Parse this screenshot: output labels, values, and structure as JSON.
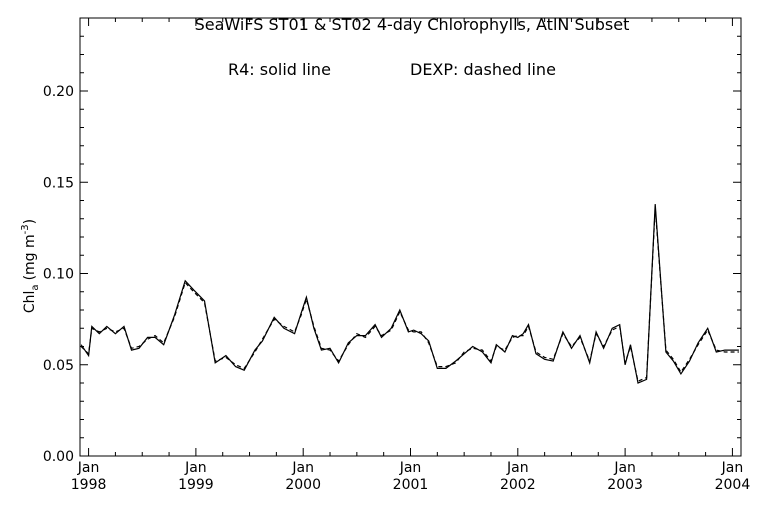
{
  "chart_data": {
    "type": "line",
    "title": "SeaWiFS ST01 & ST02 4-day Chlorophylls, AtlN Subset",
    "legend_text": [
      "R4: solid line",
      "DEXP: dashed line"
    ],
    "ylabel": "Chl",
    "ylabel_sub": "a",
    "ylabel_units": "(mg m",
    "ylabel_exp": "-3",
    "ylabel_close": ")",
    "xlabel": "",
    "ylim": [
      0.0,
      0.24
    ],
    "xlim": [
      1997.92,
      2004.08
    ],
    "y_ticks": [
      0.0,
      0.05,
      0.1,
      0.15,
      0.2
    ],
    "y_tick_labels": [
      "0.00",
      "0.05",
      "0.10",
      "0.15",
      "0.20"
    ],
    "x_ticks": [
      1998,
      1999,
      2000,
      2001,
      2002,
      2003,
      2004
    ],
    "x_tick_month": [
      "Jan",
      "Jan",
      "Jan",
      "Jan",
      "Jan",
      "Jan",
      "Jan"
    ],
    "x_tick_year": [
      "1998",
      "1999",
      "2000",
      "2001",
      "2002",
      "2003",
      "2004"
    ],
    "grid": false,
    "series": [
      {
        "name": "R4",
        "style": "solid",
        "color": "#000000",
        "x": [
          1997.93,
          1998.0,
          1998.03,
          1998.1,
          1998.17,
          1998.25,
          1998.33,
          1998.4,
          1998.47,
          1998.55,
          1998.62,
          1998.7,
          1998.8,
          1998.9,
          1998.98,
          1999.08,
          1999.18,
          1999.28,
          1999.37,
          1999.45,
          1999.55,
          1999.62,
          1999.73,
          1999.82,
          1999.92,
          1999.98,
          2000.03,
          2000.1,
          2000.17,
          2000.25,
          2000.33,
          2000.42,
          2000.5,
          2000.58,
          2000.67,
          2000.73,
          2000.82,
          2000.9,
          2000.98,
          2001.03,
          2001.1,
          2001.17,
          2001.25,
          2001.33,
          2001.42,
          2001.5,
          2001.58,
          2001.67,
          2001.75,
          2001.8,
          2001.88,
          2001.95,
          2002.0,
          2002.05,
          2002.1,
          2002.17,
          2002.25,
          2002.33,
          2002.42,
          2002.5,
          2002.58,
          2002.67,
          2002.73,
          2002.8,
          2002.88,
          2002.95,
          2003.0,
          2003.05,
          2003.12,
          2003.2,
          2003.28,
          2003.38,
          2003.45,
          2003.52,
          2003.6,
          2003.68,
          2003.77,
          2003.85,
          2003.93,
          2004.0,
          2004.06
        ],
        "y": [
          0.061,
          0.055,
          0.071,
          0.067,
          0.071,
          0.067,
          0.071,
          0.058,
          0.059,
          0.065,
          0.065,
          0.061,
          0.077,
          0.096,
          0.091,
          0.085,
          0.051,
          0.055,
          0.049,
          0.047,
          0.058,
          0.063,
          0.076,
          0.07,
          0.067,
          0.078,
          0.087,
          0.07,
          0.058,
          0.059,
          0.051,
          0.062,
          0.066,
          0.066,
          0.072,
          0.065,
          0.07,
          0.08,
          0.068,
          0.069,
          0.067,
          0.063,
          0.048,
          0.048,
          0.052,
          0.056,
          0.06,
          0.057,
          0.051,
          0.061,
          0.057,
          0.066,
          0.065,
          0.067,
          0.072,
          0.056,
          0.053,
          0.052,
          0.068,
          0.059,
          0.066,
          0.051,
          0.068,
          0.059,
          0.07,
          0.072,
          0.05,
          0.061,
          0.04,
          0.042,
          0.138,
          0.057,
          0.052,
          0.045,
          0.052,
          0.062,
          0.07,
          0.057,
          0.058,
          0.058,
          0.058
        ]
      },
      {
        "name": "DEXP",
        "style": "dashed",
        "color": "#000000",
        "x": [
          1997.93,
          1998.0,
          1998.03,
          1998.1,
          1998.17,
          1998.25,
          1998.33,
          1998.4,
          1998.47,
          1998.55,
          1998.62,
          1998.7,
          1998.8,
          1998.9,
          1998.98,
          1999.08,
          1999.18,
          1999.28,
          1999.37,
          1999.45,
          1999.55,
          1999.62,
          1999.73,
          1999.82,
          1999.92,
          1999.98,
          2000.03,
          2000.1,
          2000.17,
          2000.25,
          2000.33,
          2000.42,
          2000.5,
          2000.58,
          2000.67,
          2000.73,
          2000.82,
          2000.9,
          2000.98,
          2001.03,
          2001.1,
          2001.17,
          2001.25,
          2001.33,
          2001.42,
          2001.5,
          2001.58,
          2001.67,
          2001.75,
          2001.8,
          2001.88,
          2001.95,
          2002.0,
          2002.05,
          2002.1,
          2002.17,
          2002.25,
          2002.33,
          2002.42,
          2002.5,
          2002.58,
          2002.67,
          2002.73,
          2002.8,
          2002.88,
          2002.95,
          2003.0,
          2003.05,
          2003.12,
          2003.2,
          2003.28,
          2003.38,
          2003.45,
          2003.52,
          2003.6,
          2003.68,
          2003.77,
          2003.85,
          2003.93,
          2004.0,
          2004.06
        ],
        "y": [
          0.06,
          0.056,
          0.07,
          0.068,
          0.07,
          0.068,
          0.07,
          0.059,
          0.06,
          0.064,
          0.066,
          0.062,
          0.076,
          0.095,
          0.09,
          0.084,
          0.052,
          0.054,
          0.05,
          0.048,
          0.057,
          0.064,
          0.075,
          0.071,
          0.068,
          0.077,
          0.086,
          0.071,
          0.059,
          0.058,
          0.052,
          0.061,
          0.067,
          0.065,
          0.071,
          0.066,
          0.069,
          0.079,
          0.069,
          0.068,
          0.068,
          0.062,
          0.049,
          0.049,
          0.051,
          0.057,
          0.059,
          0.058,
          0.052,
          0.06,
          0.058,
          0.065,
          0.066,
          0.066,
          0.071,
          0.057,
          0.054,
          0.053,
          0.067,
          0.06,
          0.065,
          0.052,
          0.067,
          0.06,
          0.069,
          0.071,
          0.051,
          0.06,
          0.041,
          0.043,
          0.136,
          0.058,
          0.053,
          0.046,
          0.053,
          0.061,
          0.069,
          0.058,
          0.057,
          0.057,
          0.057
        ]
      }
    ]
  }
}
